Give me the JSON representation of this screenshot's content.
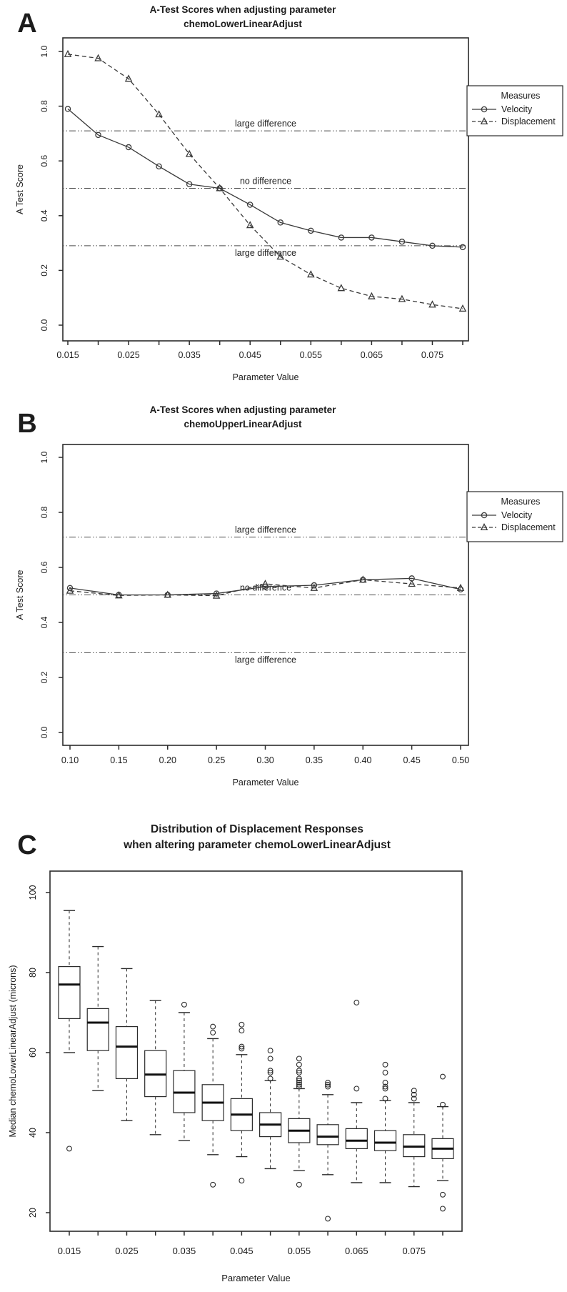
{
  "figure": {
    "panel_labels": [
      "A",
      "B",
      "C"
    ],
    "colors": {
      "annotation_blue": "#2b2bd0",
      "series_stroke": "#3a3a3a",
      "axis_stroke": "#2b2b2b"
    }
  },
  "chart_data": [
    {
      "type": "line",
      "panel_label": "A",
      "title_lines": [
        "A-Test Scores when adjusting parameter",
        "chemoLowerLinearAdjust"
      ],
      "xlabel": "Parameter Value",
      "ylabel": "A Test Score",
      "x": [
        0.015,
        0.02,
        0.025,
        0.03,
        0.035,
        0.04,
        0.045,
        0.05,
        0.055,
        0.06,
        0.065,
        0.07,
        0.075,
        0.08
      ],
      "xtick_labels": [
        "0.015",
        "0.025",
        "0.035",
        "0.045",
        "0.055",
        "0.065",
        "0.075"
      ],
      "xtick_label_every": 2,
      "ytick_labels": [
        "0.0",
        "0.2",
        "0.4",
        "0.6",
        "0.8",
        "1.0"
      ],
      "ylim": [
        0.0,
        1.0
      ],
      "grid": "off",
      "legend_position": "right",
      "series": [
        {
          "name": "Velocity",
          "marker": "circle",
          "dash": "solid",
          "values": [
            0.79,
            0.695,
            0.65,
            0.58,
            0.515,
            0.5,
            0.44,
            0.375,
            0.345,
            0.32,
            0.32,
            0.305,
            0.29,
            0.285
          ]
        },
        {
          "name": "Displacement",
          "marker": "triangle",
          "dash": "dashed",
          "values": [
            0.99,
            0.975,
            0.9,
            0.77,
            0.625,
            0.5,
            0.365,
            0.25,
            0.185,
            0.135,
            0.105,
            0.095,
            0.075,
            0.06
          ]
        }
      ],
      "ref_lines": [
        {
          "value": 0.71,
          "label": "large difference",
          "label_side": "above"
        },
        {
          "value": 0.5,
          "label": "no difference",
          "label_side": "above"
        },
        {
          "value": 0.29,
          "label": "large difference",
          "label_side": "below"
        }
      ],
      "legend": {
        "title": "Measures",
        "entries": [
          {
            "label": "Velocity",
            "marker": "circle"
          },
          {
            "label": "Displacement",
            "marker": "triangle"
          }
        ]
      }
    },
    {
      "type": "line",
      "panel_label": "B",
      "title_lines": [
        "A-Test Scores when adjusting parameter",
        "chemoUpperLinearAdjust"
      ],
      "xlabel": "Parameter Value",
      "ylabel": "A Test Score",
      "x": [
        0.1,
        0.15,
        0.2,
        0.25,
        0.3,
        0.35,
        0.4,
        0.45,
        0.5
      ],
      "xtick_labels": [
        "0.10",
        "0.15",
        "0.20",
        "0.25",
        "0.30",
        "0.35",
        "0.40",
        "0.45",
        "0.50"
      ],
      "xtick_label_every": 1,
      "ytick_labels": [
        "0.0",
        "0.2",
        "0.4",
        "0.6",
        "0.8",
        "1.0"
      ],
      "ylim": [
        0.0,
        1.0
      ],
      "grid": "off",
      "legend_position": "right",
      "series": [
        {
          "name": "Velocity",
          "marker": "circle",
          "dash": "solid",
          "values": [
            0.525,
            0.5,
            0.5,
            0.505,
            0.53,
            0.535,
            0.555,
            0.56,
            0.52
          ]
        },
        {
          "name": "Displacement",
          "marker": "triangle",
          "dash": "dashed",
          "values": [
            0.515,
            0.498,
            0.5,
            0.497,
            0.54,
            0.525,
            0.555,
            0.54,
            0.525
          ]
        }
      ],
      "ref_lines": [
        {
          "value": 0.71,
          "label": "large difference",
          "label_side": "above"
        },
        {
          "value": 0.5,
          "label": "no difference",
          "label_side": "above"
        },
        {
          "value": 0.29,
          "label": "large difference",
          "label_side": "below"
        }
      ],
      "legend": {
        "title": "Measures",
        "entries": [
          {
            "label": "Velocity",
            "marker": "circle"
          },
          {
            "label": "Displacement",
            "marker": "triangle"
          }
        ]
      }
    },
    {
      "type": "boxplot",
      "panel_label": "C",
      "title_lines": [
        "Distribution of Displacement Responses",
        "when altering parameter chemoLowerLinearAdjust"
      ],
      "xlabel": "Parameter Value",
      "ylabel": "Median chemoLowerLinearAdjust (microns)",
      "x": [
        0.015,
        0.02,
        0.025,
        0.03,
        0.035,
        0.04,
        0.045,
        0.05,
        0.055,
        0.06,
        0.065,
        0.07,
        0.075,
        0.08
      ],
      "xtick_labels": [
        "0.015",
        "0.025",
        "0.035",
        "0.045",
        "0.055",
        "0.065",
        "0.075"
      ],
      "xtick_label_every": 2,
      "ytick_labels": [
        "20",
        "40",
        "60",
        "80",
        "100"
      ],
      "yticks": [
        20,
        40,
        60,
        80,
        100
      ],
      "ylim": [
        15,
        105
      ],
      "grid": "off",
      "boxes": [
        {
          "x": 0.015,
          "low": 60,
          "q1": 68.5,
          "median": 77,
          "q3": 81.5,
          "high": 95.5,
          "outliers": [
            36
          ]
        },
        {
          "x": 0.02,
          "low": 50.5,
          "q1": 60.5,
          "median": 67.5,
          "q3": 71,
          "high": 86.5,
          "outliers": []
        },
        {
          "x": 0.025,
          "low": 43,
          "q1": 53.5,
          "median": 61.5,
          "q3": 66.5,
          "high": 81,
          "outliers": []
        },
        {
          "x": 0.03,
          "low": 39.5,
          "q1": 49,
          "median": 54.5,
          "q3": 60.5,
          "high": 73,
          "outliers": []
        },
        {
          "x": 0.035,
          "low": 38,
          "q1": 45,
          "median": 50,
          "q3": 55.5,
          "high": 70,
          "outliers": [
            72
          ]
        },
        {
          "x": 0.04,
          "low": 34.5,
          "q1": 43,
          "median": 47.5,
          "q3": 52,
          "high": 63.5,
          "outliers": [
            66.5,
            65,
            27
          ]
        },
        {
          "x": 0.045,
          "low": 34,
          "q1": 40.5,
          "median": 44.5,
          "q3": 48.5,
          "high": 59.5,
          "outliers": [
            67,
            65.5,
            61.5,
            61,
            28
          ]
        },
        {
          "x": 0.05,
          "low": 31,
          "q1": 39,
          "median": 42,
          "q3": 45,
          "high": 53,
          "outliers": [
            60.5,
            58.5,
            55.5,
            55,
            53.5
          ]
        },
        {
          "x": 0.055,
          "low": 30.5,
          "q1": 37.5,
          "median": 40.5,
          "q3": 43.5,
          "high": 51,
          "outliers": [
            58.5,
            57,
            55.5,
            55,
            53.5,
            53,
            52.5,
            52,
            51.5,
            27
          ]
        },
        {
          "x": 0.06,
          "low": 29.5,
          "q1": 37,
          "median": 39,
          "q3": 42,
          "high": 49.5,
          "outliers": [
            52.5,
            52,
            51.5,
            18.5
          ]
        },
        {
          "x": 0.065,
          "low": 27.5,
          "q1": 36,
          "median": 38,
          "q3": 41,
          "high": 47.5,
          "outliers": [
            72.5,
            51
          ]
        },
        {
          "x": 0.07,
          "low": 27.5,
          "q1": 35.5,
          "median": 37.5,
          "q3": 40.5,
          "high": 48,
          "outliers": [
            57,
            55,
            52.5,
            51.5,
            51,
            48.5
          ]
        },
        {
          "x": 0.075,
          "low": 26.5,
          "q1": 34,
          "median": 36.5,
          "q3": 39.5,
          "high": 47.5,
          "outliers": [
            50.5,
            49.5,
            48.5
          ]
        },
        {
          "x": 0.08,
          "low": 28,
          "q1": 33.5,
          "median": 36,
          "q3": 38.5,
          "high": 46.5,
          "outliers": [
            54,
            47,
            24.5,
            21
          ]
        }
      ]
    }
  ]
}
